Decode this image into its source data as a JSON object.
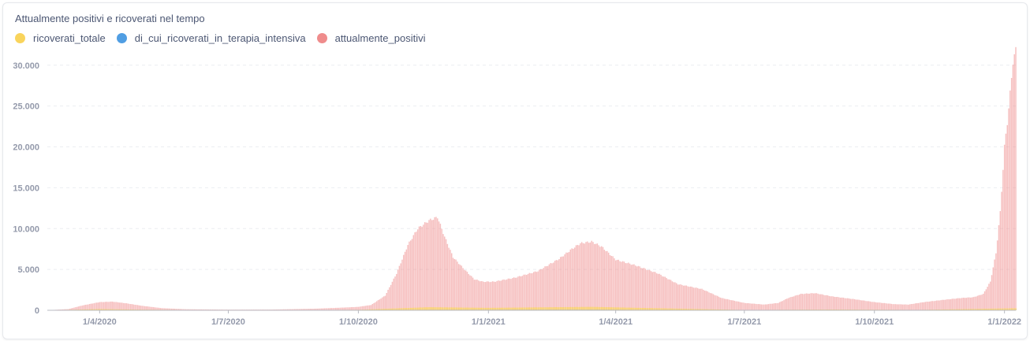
{
  "card": {
    "title": "Attualmente positivi e ricoverati nel tempo"
  },
  "legend": [
    {
      "label": "ricoverati_totale",
      "color": "#f9d45c"
    },
    {
      "label": "di_cui_ricoverati_in_terapia_intensiva",
      "color": "#509ee3"
    },
    {
      "label": "attualmente_positivi",
      "color": "#ef8c8c"
    }
  ],
  "chart_data": {
    "type": "bar",
    "title": "Attualmente positivi e ricoverati nel tempo",
    "x_start": "2020-02-24",
    "x_end": "2022-01-09",
    "ylim": [
      0,
      32000
    ],
    "y_ticks": [
      0,
      5000,
      10000,
      15000,
      20000,
      25000,
      30000
    ],
    "y_tick_labels": [
      "0",
      "5.000",
      "10.000",
      "15.000",
      "20.000",
      "25.000",
      "30.000"
    ],
    "x_tick_labels": [
      {
        "date": "2020-04-01",
        "label": "1/4/2020"
      },
      {
        "date": "2020-07-01",
        "label": "1/7/2020"
      },
      {
        "date": "2020-10-01",
        "label": "1/10/2020"
      },
      {
        "date": "2021-01-01",
        "label": "1/1/2021"
      },
      {
        "date": "2021-04-01",
        "label": "1/4/2021"
      },
      {
        "date": "2021-07-01",
        "label": "1/7/2021"
      },
      {
        "date": "2021-10-01",
        "label": "1/10/2021"
      },
      {
        "date": "2022-01-01",
        "label": "1/1/2022"
      }
    ],
    "grid": true,
    "legend_position": "top-left",
    "series": [
      {
        "name": "attualmente_positivi",
        "color": "#ef8c8c",
        "points": [
          [
            "2020-02-24",
            10
          ],
          [
            "2020-03-10",
            150
          ],
          [
            "2020-03-20",
            600
          ],
          [
            "2020-04-01",
            1000
          ],
          [
            "2020-04-10",
            1060
          ],
          [
            "2020-04-20",
            850
          ],
          [
            "2020-05-01",
            550
          ],
          [
            "2020-05-15",
            260
          ],
          [
            "2020-06-01",
            130
          ],
          [
            "2020-07-01",
            80
          ],
          [
            "2020-08-01",
            90
          ],
          [
            "2020-09-01",
            200
          ],
          [
            "2020-09-20",
            330
          ],
          [
            "2020-10-01",
            420
          ],
          [
            "2020-10-10",
            650
          ],
          [
            "2020-10-20",
            1800
          ],
          [
            "2020-10-28",
            4500
          ],
          [
            "2020-11-05",
            8000
          ],
          [
            "2020-11-12",
            10000
          ],
          [
            "2020-11-20",
            11000
          ],
          [
            "2020-11-26",
            11400
          ],
          [
            "2020-12-01",
            9000
          ],
          [
            "2020-12-07",
            6500
          ],
          [
            "2020-12-15",
            5000
          ],
          [
            "2020-12-22",
            3800
          ],
          [
            "2020-12-28",
            3500
          ],
          [
            "2021-01-05",
            3500
          ],
          [
            "2021-01-20",
            4000
          ],
          [
            "2021-02-05",
            4800
          ],
          [
            "2021-02-20",
            6300
          ],
          [
            "2021-03-01",
            7500
          ],
          [
            "2021-03-07",
            8200
          ],
          [
            "2021-03-15",
            8400
          ],
          [
            "2021-03-22",
            7800
          ],
          [
            "2021-04-01",
            6200
          ],
          [
            "2021-04-15",
            5500
          ],
          [
            "2021-05-01",
            4500
          ],
          [
            "2021-05-15",
            3200
          ],
          [
            "2021-06-01",
            2600
          ],
          [
            "2021-06-15",
            1500
          ],
          [
            "2021-07-01",
            900
          ],
          [
            "2021-07-15",
            700
          ],
          [
            "2021-07-25",
            900
          ],
          [
            "2021-08-01",
            1500
          ],
          [
            "2021-08-10",
            2000
          ],
          [
            "2021-08-20",
            2100
          ],
          [
            "2021-09-01",
            1700
          ],
          [
            "2021-09-15",
            1400
          ],
          [
            "2021-10-01",
            1000
          ],
          [
            "2021-10-15",
            750
          ],
          [
            "2021-10-25",
            700
          ],
          [
            "2021-11-05",
            1000
          ],
          [
            "2021-11-20",
            1300
          ],
          [
            "2021-12-01",
            1500
          ],
          [
            "2021-12-10",
            1600
          ],
          [
            "2021-12-17",
            2000
          ],
          [
            "2021-12-22",
            3500
          ],
          [
            "2021-12-26",
            7000
          ],
          [
            "2021-12-29",
            12000
          ],
          [
            "2022-01-01",
            20000
          ],
          [
            "2022-01-03",
            23000
          ],
          [
            "2022-01-05",
            26500
          ],
          [
            "2022-01-07",
            30500
          ],
          [
            "2022-01-09",
            31800
          ]
        ]
      },
      {
        "name": "ricoverati_totale",
        "color": "#f9d45c",
        "points": [
          [
            "2020-02-24",
            0
          ],
          [
            "2020-04-01",
            150
          ],
          [
            "2020-05-01",
            80
          ],
          [
            "2020-07-01",
            10
          ],
          [
            "2020-10-01",
            60
          ],
          [
            "2020-11-20",
            380
          ],
          [
            "2021-01-01",
            300
          ],
          [
            "2021-03-15",
            420
          ],
          [
            "2021-05-01",
            250
          ],
          [
            "2021-07-01",
            40
          ],
          [
            "2021-09-01",
            90
          ],
          [
            "2021-11-01",
            50
          ],
          [
            "2022-01-09",
            250
          ]
        ]
      },
      {
        "name": "di_cui_ricoverati_in_terapia_intensiva",
        "color": "#509ee3",
        "points": [
          [
            "2020-02-24",
            0
          ],
          [
            "2020-04-01",
            20
          ],
          [
            "2020-07-01",
            2
          ],
          [
            "2020-11-20",
            50
          ],
          [
            "2021-03-20",
            60
          ],
          [
            "2021-07-01",
            5
          ],
          [
            "2021-09-01",
            12
          ],
          [
            "2022-01-09",
            35
          ]
        ]
      }
    ]
  }
}
